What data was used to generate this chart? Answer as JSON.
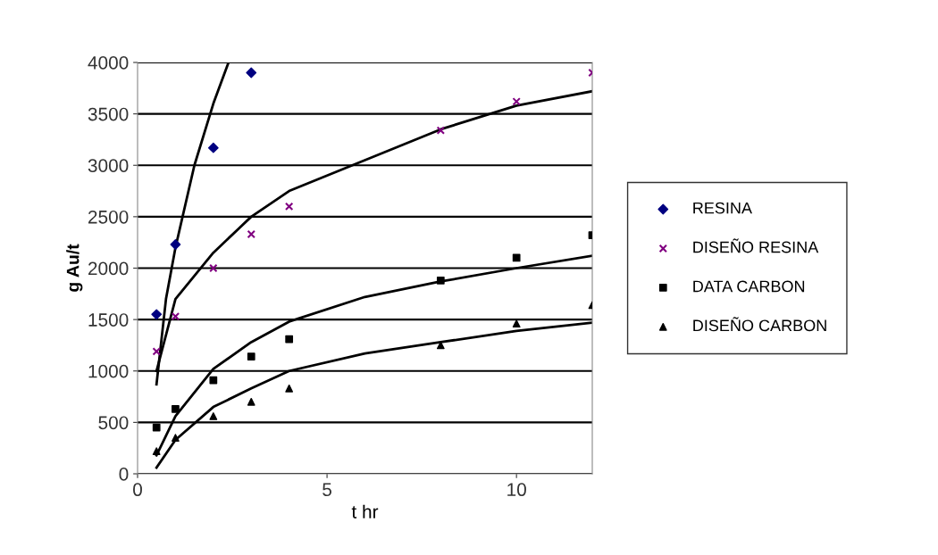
{
  "chart_data": {
    "type": "scatter",
    "xlabel": "t hr",
    "ylabel": "g Au/t",
    "xlim": [
      0,
      12
    ],
    "xticks": [
      0,
      5,
      10
    ],
    "ylim": [
      0,
      4000
    ],
    "yticks": [
      0,
      500,
      1000,
      1500,
      2000,
      2500,
      3000,
      3500,
      4000
    ],
    "grid": "y",
    "legend": "right",
    "series": [
      {
        "name": "RESINA",
        "color": "#000080",
        "marker": "diamond",
        "x": [
          0.5,
          1,
          2,
          3
        ],
        "values": [
          1550,
          2230,
          3170,
          3900
        ]
      },
      {
        "name": "DISEÑO RESINA",
        "color": "#800080",
        "marker": "cross",
        "x": [
          0.5,
          1,
          2,
          3,
          4,
          8,
          10,
          12
        ],
        "values": [
          1190,
          1530,
          2000,
          2330,
          2600,
          3340,
          3620,
          3900
        ]
      },
      {
        "name": "DATA CARBON",
        "color": "#000000",
        "marker": "square",
        "x": [
          0.5,
          1,
          2,
          3,
          4,
          8,
          10,
          12
        ],
        "values": [
          450,
          630,
          910,
          1140,
          1310,
          1880,
          2100,
          2320
        ]
      },
      {
        "name": "DISEÑO CARBON",
        "color": "#000000",
        "marker": "triangle",
        "x": [
          0.5,
          1,
          2,
          3,
          4,
          8,
          10,
          12
        ],
        "values": [
          220,
          350,
          560,
          700,
          830,
          1250,
          1460,
          1640
        ]
      },
      {
        "type": "line",
        "color": "#000000",
        "x": [
          0.5,
          0.75,
          1,
          1.5,
          2,
          2.4
        ],
        "values": [
          870,
          1700,
          2200,
          3000,
          3600,
          4000
        ]
      },
      {
        "type": "line",
        "color": "#000000",
        "x": [
          0.5,
          1,
          2,
          3,
          4,
          6,
          8,
          10,
          12
        ],
        "values": [
          1000,
          1700,
          2150,
          2500,
          2750,
          3050,
          3350,
          3580,
          3720
        ]
      },
      {
        "type": "line",
        "color": "#000000",
        "x": [
          0.5,
          1,
          2,
          3,
          4,
          6,
          8,
          10,
          12
        ],
        "values": [
          180,
          560,
          1020,
          1280,
          1480,
          1720,
          1870,
          2000,
          2120
        ]
      },
      {
        "type": "line",
        "color": "#000000",
        "x": [
          0.5,
          1,
          2,
          3,
          4,
          6,
          8,
          10,
          12
        ],
        "values": [
          60,
          330,
          650,
          830,
          1000,
          1170,
          1280,
          1390,
          1470
        ]
      }
    ]
  }
}
